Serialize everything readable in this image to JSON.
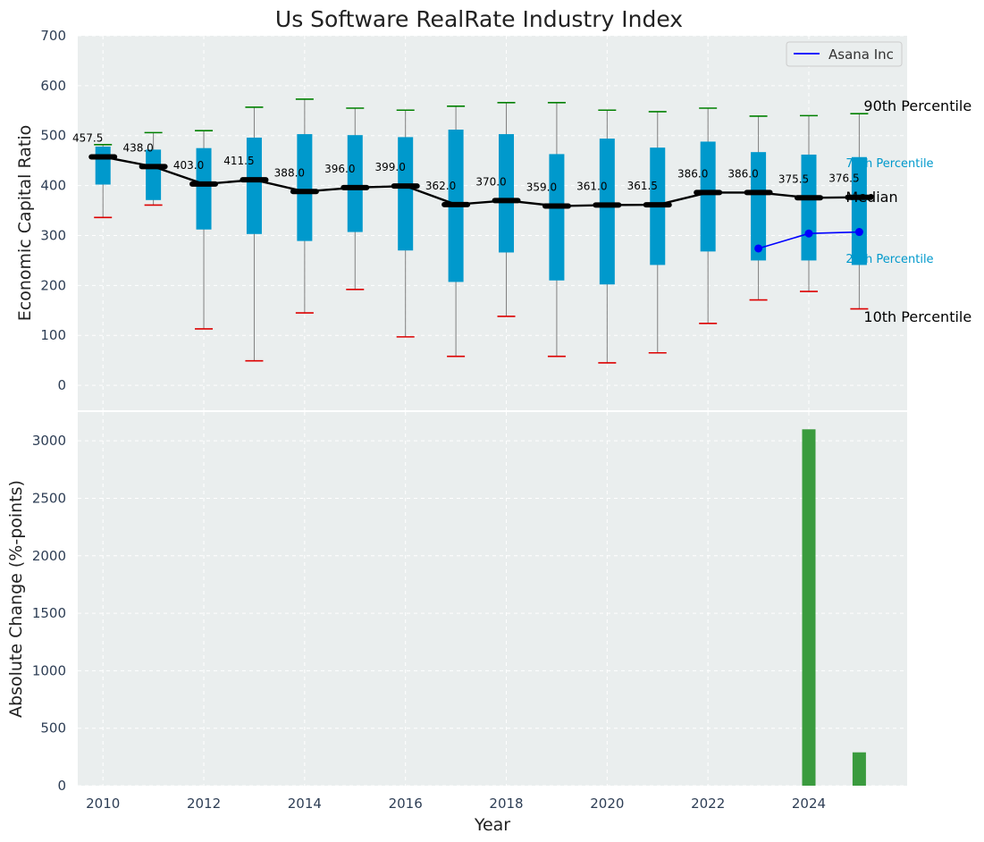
{
  "chart_data": [
    {
      "type": "box",
      "title": "Us Software RealRate Industry Index",
      "ylabel": "Economic Capital Ratio",
      "ylim": [
        -50,
        700
      ],
      "yticks": [
        0,
        100,
        200,
        300,
        400,
        500,
        600,
        700
      ],
      "xlim": [
        2009.5,
        2025.95
      ],
      "grid": true,
      "legend_position": "top-right",
      "legend": [
        {
          "label": "Asana Inc",
          "color": "#0000ff"
        }
      ],
      "years": [
        2010,
        2011,
        2012,
        2013,
        2014,
        2015,
        2016,
        2017,
        2018,
        2019,
        2020,
        2021,
        2022,
        2023,
        2024,
        2025
      ],
      "p10": [
        336,
        361,
        113,
        49,
        145,
        192,
        97,
        58,
        138,
        58,
        45,
        65,
        124,
        171,
        188,
        153
      ],
      "p25": [
        402,
        371,
        312,
        303,
        289,
        307,
        270,
        207,
        266,
        210,
        202,
        241,
        268,
        250,
        250,
        241
      ],
      "median": [
        457.5,
        438.0,
        403.0,
        411.5,
        388.0,
        396.0,
        399.0,
        362.0,
        370.0,
        359.0,
        361.0,
        361.5,
        386.0,
        386.0,
        375.5,
        376.5
      ],
      "median_labels": [
        "457.5",
        "438.0",
        "403.0",
        "411.5",
        "388.0",
        "396.0",
        "399.0",
        "362.0",
        "370.0",
        "359.0",
        "361.0",
        "361.5",
        "386.0",
        "386.0",
        "375.5",
        "376.5"
      ],
      "p75": [
        478,
        472,
        475,
        496,
        503,
        501,
        497,
        512,
        503,
        463,
        494,
        476,
        488,
        467,
        462,
        457
      ],
      "p90": [
        482,
        506,
        510,
        557,
        573,
        555,
        551,
        559,
        566,
        566,
        551,
        548,
        555,
        539,
        540,
        544
      ],
      "company": {
        "name": "Asana Inc",
        "years": [
          2023,
          2024,
          2025
        ],
        "values": [
          274,
          304,
          307
        ]
      },
      "annotations": {
        "p90": "90th Percentile",
        "p75": "75th Percentile",
        "median": "Median",
        "p25": "25th Percentile",
        "p10": "10th Percentile"
      },
      "colors": {
        "box": "#0099cc",
        "median_line": "#000000",
        "company_line": "#0000ff",
        "p90_cap": "#008000",
        "p10_cap": "#dd0000",
        "whisker": "#808080",
        "annotation_small": "#0099cc"
      }
    },
    {
      "type": "bar",
      "ylabel": "Absolute Change (%-points)",
      "xlabel": "Year",
      "ylim": [
        0,
        3250
      ],
      "yticks": [
        0,
        500,
        1000,
        1500,
        2000,
        2500,
        3000
      ],
      "xticks": [
        2010,
        2012,
        2014,
        2016,
        2018,
        2020,
        2022,
        2024
      ],
      "grid": true,
      "x": [
        2024,
        2025
      ],
      "values": [
        3100,
        290
      ],
      "bar_color": "#3a9b3e"
    }
  ]
}
